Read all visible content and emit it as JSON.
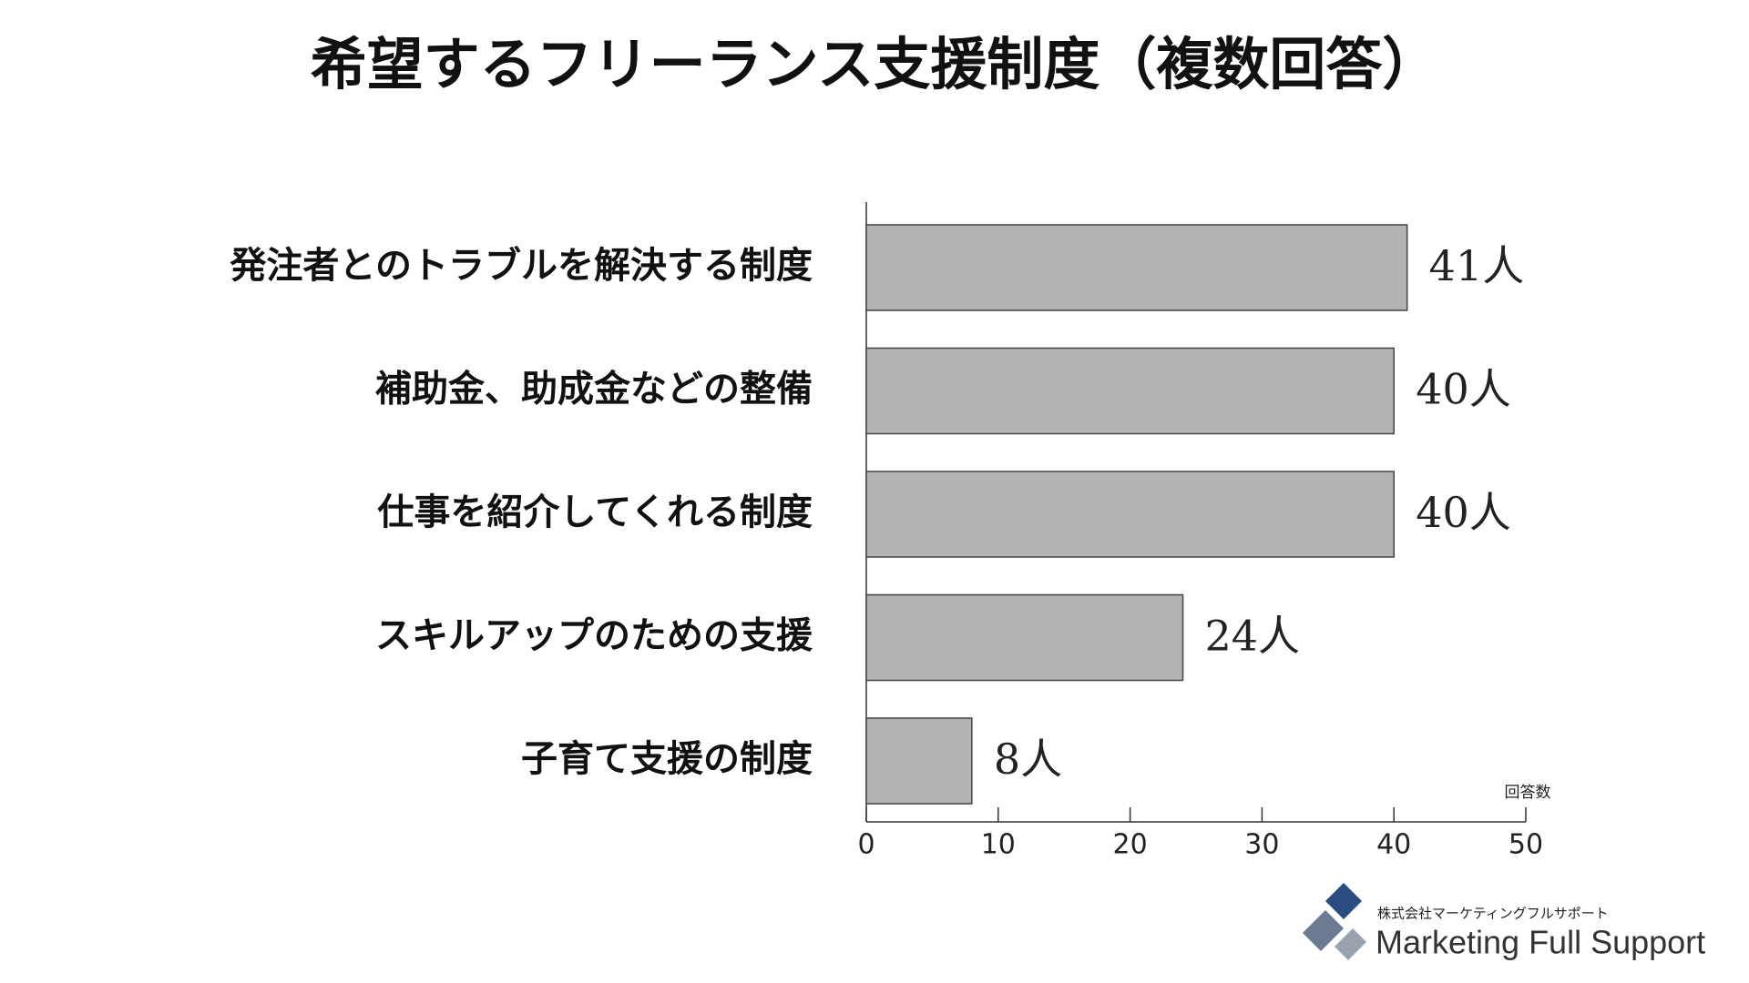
{
  "chart_data": {
    "type": "bar",
    "orientation": "horizontal",
    "title": "希望するフリーランス支援制度（複数回答）",
    "categories": [
      "発注者とのトラブルを解決する制度",
      "補助金、助成金などの整備",
      "仕事を紹介してくれる制度",
      "スキルアップのための支援",
      "子育て支援の制度"
    ],
    "values": [
      41,
      40,
      40,
      24,
      8
    ],
    "value_labels": [
      "41人",
      "40人",
      "40人",
      "24人",
      "8人"
    ],
    "color": "#b3b3b3",
    "x_label": "回答数",
    "xlim": [
      0,
      50
    ],
    "xticks": [
      0,
      10,
      20,
      30,
      40,
      50
    ],
    "grid": false
  },
  "footer": {
    "company": "株式会社マーケティングフルサポート",
    "brand": "Marketing Full Support"
  }
}
